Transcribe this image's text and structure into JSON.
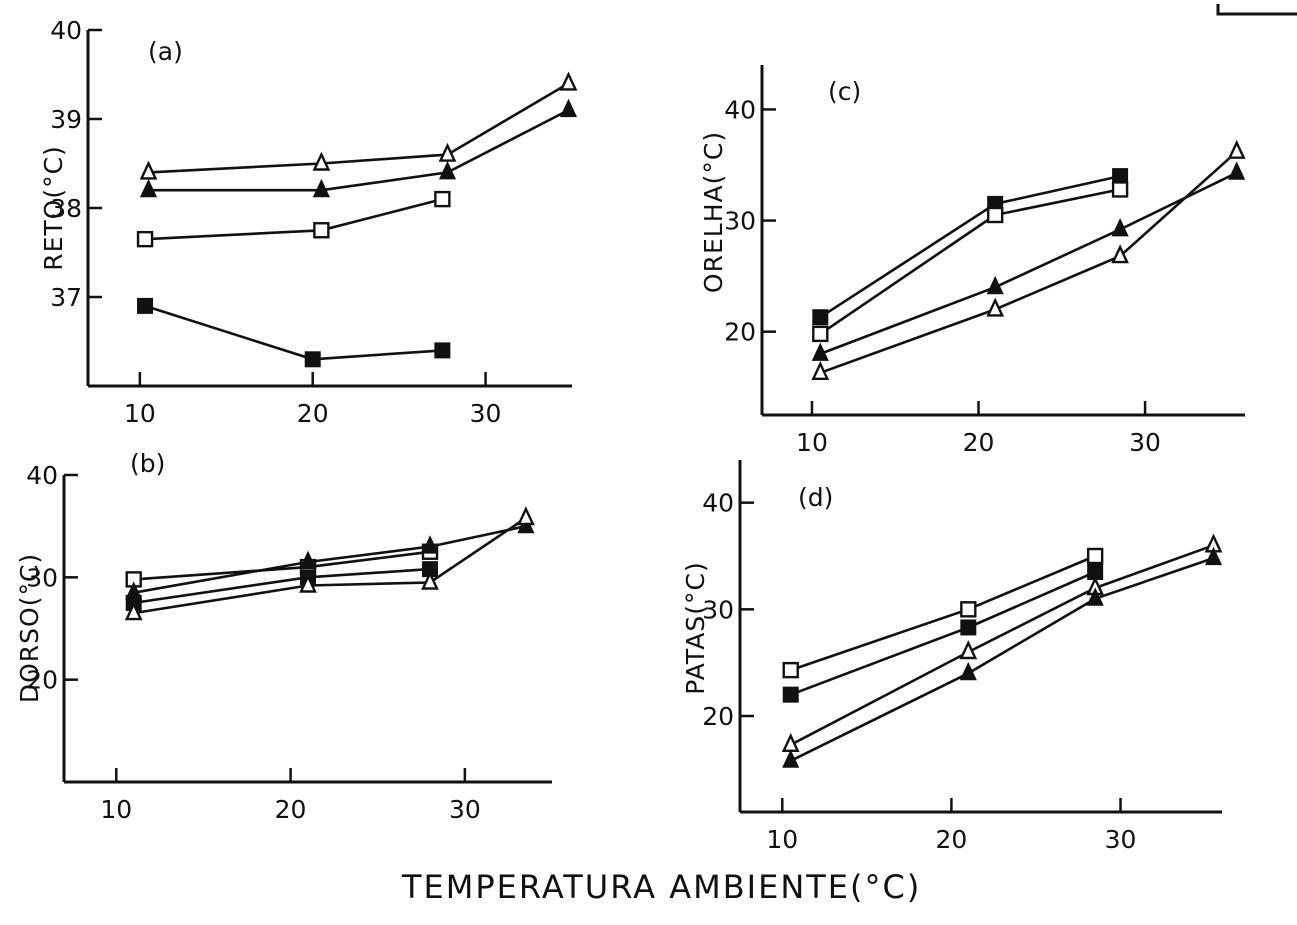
{
  "chart_data": [
    {
      "panel": "(a)",
      "type": "line",
      "ylabel": "RETO(°C)",
      "xlim": [
        7,
        35
      ],
      "ylim": [
        36.0,
        40
      ],
      "xticks": [
        10,
        20,
        30
      ],
      "yticks": [
        37,
        38,
        39,
        40
      ],
      "series": [
        {
          "marker": "open-triangle",
          "points": [
            [
              10.5,
              38.4
            ],
            [
              20.5,
              38.5
            ],
            [
              27.8,
              38.6
            ],
            [
              34.8,
              39.4
            ]
          ]
        },
        {
          "marker": "filled-triangle",
          "points": [
            [
              10.5,
              38.2
            ],
            [
              20.5,
              38.2
            ],
            [
              27.8,
              38.4
            ],
            [
              34.8,
              39.1
            ]
          ]
        },
        {
          "marker": "open-square",
          "points": [
            [
              10.3,
              37.65
            ],
            [
              20.5,
              37.75
            ],
            [
              27.5,
              38.1
            ]
          ]
        },
        {
          "marker": "filled-square",
          "points": [
            [
              10.3,
              36.9
            ],
            [
              20.0,
              36.3
            ],
            [
              27.5,
              36.4
            ]
          ]
        }
      ]
    },
    {
      "panel": "(b)",
      "type": "line",
      "ylabel": "DORSO(°C)",
      "xlim": [
        7,
        35
      ],
      "ylim": [
        10,
        40
      ],
      "xticks": [
        10,
        20,
        30
      ],
      "yticks": [
        20,
        30,
        40
      ],
      "series": [
        {
          "marker": "open-square",
          "points": [
            [
              11,
              29.8
            ],
            [
              21,
              31.0
            ],
            [
              28,
              32.5
            ]
          ]
        },
        {
          "marker": "filled-triangle",
          "points": [
            [
              11,
              28.5
            ],
            [
              21,
              31.5
            ],
            [
              28,
              33.0
            ],
            [
              33.5,
              35.0
            ]
          ]
        },
        {
          "marker": "filled-square",
          "points": [
            [
              11,
              27.5
            ],
            [
              21,
              30.0
            ],
            [
              28,
              30.8
            ]
          ]
        },
        {
          "marker": "open-triangle",
          "points": [
            [
              11,
              26.5
            ],
            [
              21,
              29.2
            ],
            [
              28,
              29.5
            ],
            [
              33.5,
              35.8
            ]
          ]
        }
      ]
    },
    {
      "panel": "(c)",
      "type": "line",
      "ylabel": "ORELHA(°C)",
      "xlim": [
        7,
        36
      ],
      "ylim": [
        12.5,
        44
      ],
      "xticks": [
        10,
        20,
        30
      ],
      "yticks": [
        20,
        30,
        40
      ],
      "series": [
        {
          "marker": "filled-square",
          "points": [
            [
              10.5,
              21.3
            ],
            [
              21,
              31.5
            ],
            [
              28.5,
              34.0
            ]
          ]
        },
        {
          "marker": "open-square",
          "points": [
            [
              10.5,
              19.8
            ],
            [
              21,
              30.5
            ],
            [
              28.5,
              32.8
            ]
          ]
        },
        {
          "marker": "filled-triangle",
          "points": [
            [
              10.5,
              18.0
            ],
            [
              21,
              24.0
            ],
            [
              28.5,
              29.2
            ],
            [
              35.5,
              34.3
            ]
          ]
        },
        {
          "marker": "open-triangle",
          "points": [
            [
              10.5,
              16.3
            ],
            [
              21,
              22.0
            ],
            [
              28.5,
              26.8
            ],
            [
              35.5,
              36.2
            ]
          ]
        }
      ]
    },
    {
      "panel": "(d)",
      "type": "line",
      "ylabel": "PATAS(°C)",
      "xlim": [
        7.5,
        36
      ],
      "ylim": [
        11,
        44
      ],
      "xticks": [
        10,
        20,
        30
      ],
      "yticks": [
        20,
        30,
        40
      ],
      "series": [
        {
          "marker": "open-square",
          "points": [
            [
              10.5,
              24.3
            ],
            [
              21,
              30.0
            ],
            [
              28.5,
              35.0
            ]
          ]
        },
        {
          "marker": "filled-square",
          "points": [
            [
              10.5,
              22.0
            ],
            [
              21,
              28.3
            ],
            [
              28.5,
              33.5
            ]
          ]
        },
        {
          "marker": "open-triangle",
          "points": [
            [
              10.5,
              17.3
            ],
            [
              21,
              26.0
            ],
            [
              28.5,
              32.0
            ],
            [
              35.5,
              36.0
            ]
          ]
        },
        {
          "marker": "filled-triangle",
          "points": [
            [
              10.5,
              15.8
            ],
            [
              21,
              24.0
            ],
            [
              28.5,
              31.0
            ],
            [
              35.5,
              34.8
            ]
          ]
        }
      ]
    }
  ],
  "xlabel": "TEMPERATURA AMBIENTE(°C)",
  "colors": {
    "ink": "#111111",
    "background": "#ffffff"
  }
}
